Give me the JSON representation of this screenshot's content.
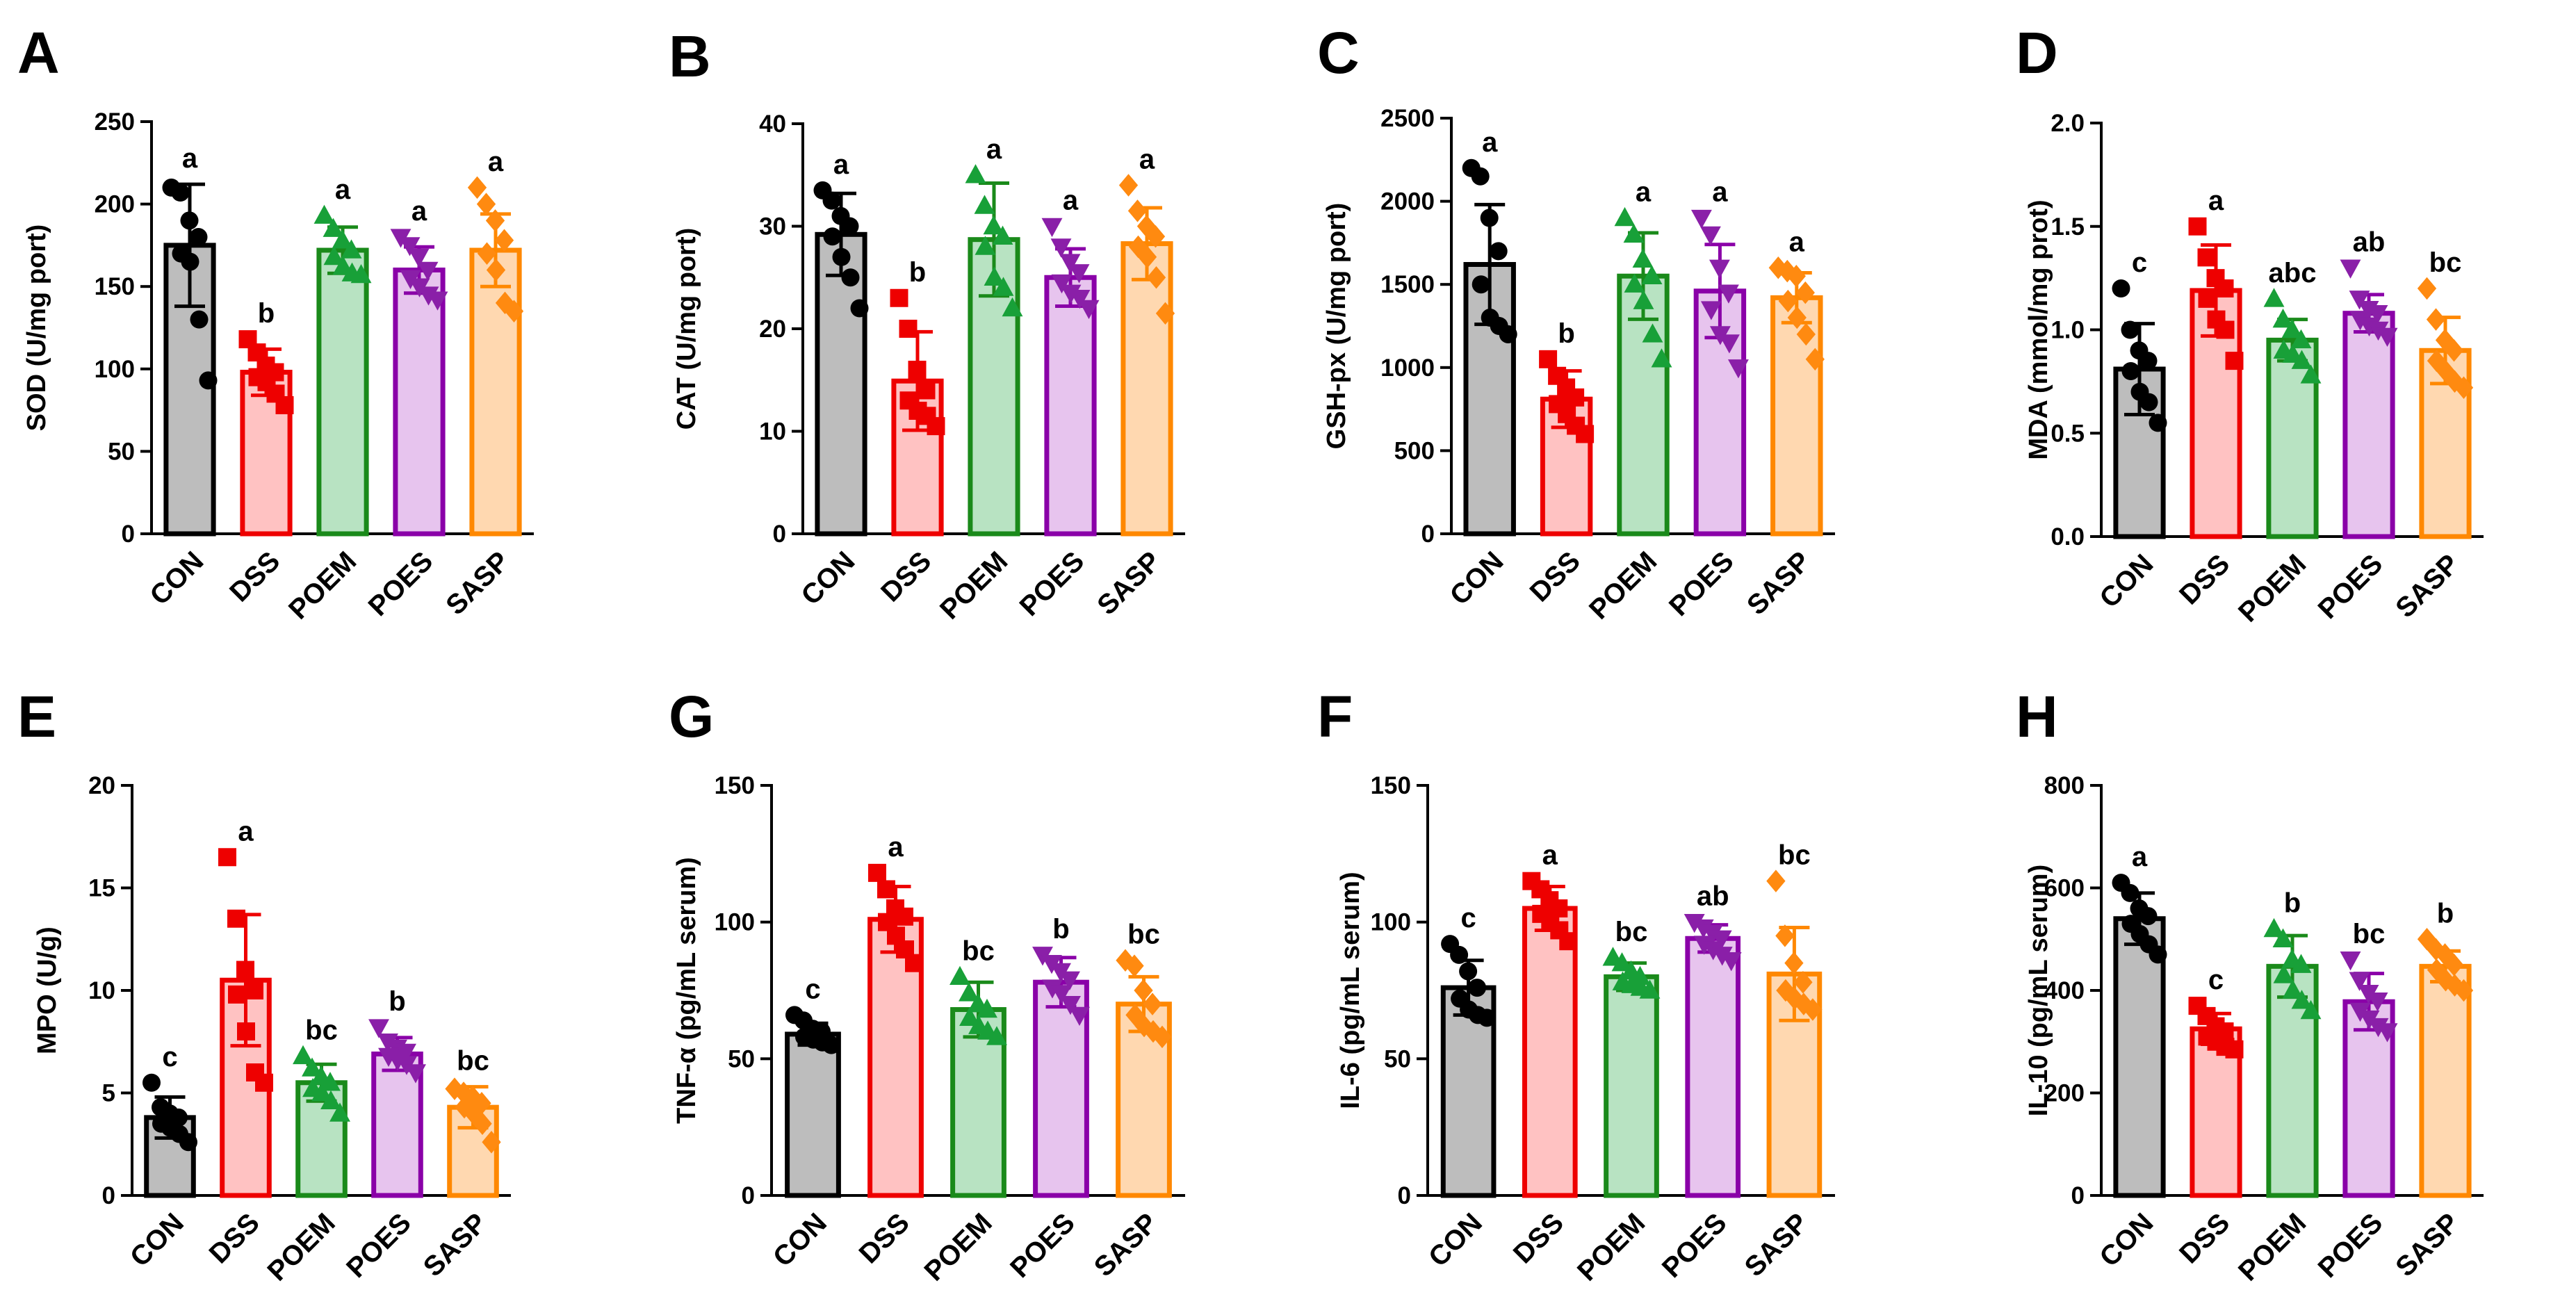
{
  "figure": {
    "groups": [
      "CON",
      "DSS",
      "POEM",
      "POES",
      "SASP"
    ],
    "group_colors": {
      "stroke": [
        "#000000",
        "#ee0000",
        "#1a8a1a",
        "#8a00a8",
        "#ff8800"
      ],
      "fill": [
        "#bdbdbd",
        "#ffc2c2",
        "#b8e3c2",
        "#e7c4ee",
        "#ffd8b0"
      ],
      "points": [
        "#000000",
        "#ee0000",
        "#18a038",
        "#8a1fa8",
        "#ff8a10"
      ]
    },
    "marker_shapes": [
      "circle",
      "square",
      "triangle-up",
      "triangle-down",
      "diamond"
    ]
  },
  "chart_data": [
    {
      "type": "bar",
      "panel": "A",
      "ylabel": "SOD (U/mg port)",
      "categories": [
        "CON",
        "DSS",
        "POEM",
        "POES",
        "SASP"
      ],
      "ylim": [
        0,
        250
      ],
      "yticks": [
        0,
        50,
        100,
        150,
        200,
        250
      ],
      "yticklabels": [
        "0",
        "50",
        "100",
        "150",
        "200",
        "250"
      ],
      "means": [
        175,
        98,
        172,
        160,
        172
      ],
      "sd": [
        37,
        14,
        14,
        14,
        22
      ],
      "significance": [
        "a",
        "b",
        "a",
        "a",
        "a"
      ],
      "points": [
        [
          210,
          207,
          190,
          180,
          170,
          165,
          130,
          93
        ],
        [
          118,
          110,
          102,
          98,
          95,
          92,
          85,
          78
        ],
        [
          193,
          185,
          178,
          172,
          168,
          162,
          158,
          157
        ],
        [
          180,
          175,
          168,
          160,
          155,
          150,
          145,
          142
        ],
        [
          210,
          200,
          190,
          178,
          170,
          160,
          140,
          135
        ]
      ]
    },
    {
      "type": "bar",
      "panel": "B",
      "ylabel": "CAT (U/mg port)",
      "categories": [
        "CON",
        "DSS",
        "POEM",
        "POES",
        "SASP"
      ],
      "ylim": [
        0,
        40
      ],
      "yticks": [
        0,
        10,
        20,
        30,
        40
      ],
      "yticklabels": [
        "0",
        "10",
        "20",
        "30",
        "40"
      ],
      "means": [
        29.2,
        14.9,
        28.7,
        25,
        28.3
      ],
      "sd": [
        4,
        4.8,
        5.5,
        2.8,
        3.5
      ],
      "significance": [
        "a",
        "b",
        "a",
        "a",
        "a"
      ],
      "points": [
        [
          33.5,
          32.5,
          31,
          30,
          29,
          27,
          25,
          22
        ],
        [
          23,
          20,
          16,
          14,
          13,
          12,
          11.5,
          10.5
        ],
        [
          35,
          32,
          30,
          29,
          28,
          25,
          24,
          22
        ],
        [
          30,
          28,
          26.5,
          25.5,
          24.5,
          23.5,
          23,
          22
        ],
        [
          34,
          31.5,
          30,
          29,
          28,
          27,
          25,
          21.5
        ]
      ]
    },
    {
      "type": "bar",
      "panel": "C",
      "ylabel": "GSH-px (U/mg port)",
      "categories": [
        "CON",
        "DSS",
        "POEM",
        "POES",
        "SASP"
      ],
      "ylim": [
        0,
        2500
      ],
      "yticks": [
        0,
        500,
        1000,
        1500,
        2000,
        2500
      ],
      "yticklabels": [
        "0",
        "500",
        "1000",
        "1500",
        "2000",
        "2500"
      ],
      "means": [
        1620,
        810,
        1550,
        1460,
        1420
      ],
      "sd": [
        360,
        170,
        260,
        280,
        150
      ],
      "significance": [
        "a",
        "b",
        "a",
        "a",
        "a"
      ],
      "points": [
        [
          2200,
          2150,
          1900,
          1700,
          1500,
          1300,
          1250,
          1200
        ],
        [
          1050,
          950,
          880,
          820,
          780,
          720,
          650,
          600
        ],
        [
          1900,
          1800,
          1650,
          1550,
          1500,
          1400,
          1200,
          1050
        ],
        [
          1900,
          1800,
          1600,
          1450,
          1350,
          1200,
          1150,
          1000
        ],
        [
          1600,
          1580,
          1550,
          1450,
          1400,
          1300,
          1200,
          1050
        ]
      ]
    },
    {
      "type": "bar",
      "panel": "D",
      "ylabel": "MDA (mmol/mg prot)",
      "categories": [
        "CON",
        "DSS",
        "POEM",
        "POES",
        "SASP"
      ],
      "ylim": [
        0,
        2.0
      ],
      "yticks": [
        0,
        0.5,
        1.0,
        1.5,
        2.0
      ],
      "yticklabels": [
        "0.0",
        "0.5",
        "1.0",
        "1.5",
        "2.0"
      ],
      "means": [
        0.81,
        1.19,
        0.95,
        1.08,
        0.9
      ],
      "sd": [
        0.22,
        0.22,
        0.1,
        0.09,
        0.16
      ],
      "significance": [
        "c",
        "a",
        "abc",
        "ab",
        "bc"
      ],
      "points": [
        [
          1.2,
          1.0,
          0.9,
          0.85,
          0.8,
          0.7,
          0.65,
          0.55
        ],
        [
          1.5,
          1.35,
          1.25,
          1.2,
          1.15,
          1.05,
          1.0,
          0.85
        ],
        [
          1.15,
          1.05,
          1.0,
          0.95,
          0.9,
          0.88,
          0.85,
          0.78
        ],
        [
          1.3,
          1.15,
          1.1,
          1.08,
          1.05,
          1.02,
          1.0,
          0.97
        ],
        [
          1.2,
          1.05,
          0.95,
          0.9,
          0.85,
          0.8,
          0.75,
          0.72
        ]
      ]
    },
    {
      "type": "bar",
      "panel": "E",
      "ylabel": "MPO (U/g)",
      "categories": [
        "CON",
        "DSS",
        "POEM",
        "POES",
        "SASP"
      ],
      "ylim": [
        0,
        20
      ],
      "yticks": [
        0,
        5,
        10,
        15,
        20
      ],
      "yticklabels": [
        "0",
        "5",
        "10",
        "15",
        "20"
      ],
      "means": [
        3.8,
        10.5,
        5.5,
        6.9,
        4.3
      ],
      "sd": [
        1,
        3.2,
        0.9,
        0.8,
        1
      ],
      "significance": [
        "c",
        "a",
        "bc",
        "b",
        "bc"
      ],
      "points": [
        [
          5.5,
          4.3,
          4,
          3.8,
          3.5,
          3.3,
          3.0,
          2.6
        ],
        [
          16.5,
          13.5,
          11,
          10,
          9.8,
          8,
          6,
          5.5
        ],
        [
          6.8,
          6.2,
          5.8,
          5.5,
          5.2,
          5,
          4.6,
          4.0
        ],
        [
          8.2,
          7.5,
          7.2,
          7,
          6.8,
          6.6,
          6.4,
          6.0
        ],
        [
          5.2,
          5.0,
          4.8,
          4.5,
          4.3,
          4.0,
          3.5,
          2.6
        ]
      ]
    },
    {
      "type": "bar",
      "panel": "G",
      "ylabel": "TNF-α (pg/mL serum)",
      "categories": [
        "CON",
        "DSS",
        "POEM",
        "POES",
        "SASP"
      ],
      "ylim": [
        0,
        150
      ],
      "yticks": [
        0,
        50,
        100,
        150
      ],
      "yticklabels": [
        "0",
        "50",
        "100",
        "150"
      ],
      "means": [
        59,
        101,
        68,
        78,
        70
      ],
      "sd": [
        4,
        12,
        10,
        9,
        10
      ],
      "significance": [
        "c",
        "a",
        "bc",
        "b",
        "bc"
      ],
      "points": [
        [
          66,
          64,
          61,
          60,
          58,
          57,
          56,
          55
        ],
        [
          118,
          112,
          105,
          102,
          100,
          95,
          90,
          85
        ],
        [
          80,
          74,
          70,
          68,
          65,
          62,
          60,
          58
        ],
        [
          88,
          85,
          82,
          79,
          76,
          74,
          70,
          66
        ],
        [
          86,
          84,
          75,
          70,
          66,
          62,
          60,
          58
        ]
      ]
    },
    {
      "type": "bar",
      "panel": "F",
      "ylabel": "IL-6 (pg/mL serum)",
      "categories": [
        "CON",
        "DSS",
        "POEM",
        "POES",
        "SASP"
      ],
      "ylim": [
        0,
        150
      ],
      "yticks": [
        0,
        50,
        100,
        150
      ],
      "yticklabels": [
        "0",
        "50",
        "100",
        "150"
      ],
      "means": [
        76,
        105,
        80,
        94,
        81
      ],
      "sd": [
        10,
        8,
        5,
        5,
        17
      ],
      "significance": [
        "c",
        "a",
        "bc",
        "ab",
        "bc"
      ],
      "points": [
        [
          92,
          88,
          82,
          76,
          72,
          68,
          66,
          65
        ],
        [
          115,
          112,
          108,
          105,
          103,
          100,
          97,
          93
        ],
        [
          87,
          85,
          82,
          80,
          78,
          77,
          76,
          75
        ],
        [
          100,
          98,
          96,
          94,
          92,
          90,
          88,
          86
        ],
        [
          115,
          95,
          85,
          78,
          75,
          72,
          70,
          68
        ]
      ]
    },
    {
      "type": "bar",
      "panel": "H",
      "ylabel": "IL-10 (pg/mL serum)",
      "categories": [
        "CON",
        "DSS",
        "POEM",
        "POES",
        "SASP"
      ],
      "ylim": [
        0,
        800
      ],
      "yticks": [
        0,
        200,
        400,
        600,
        800
      ],
      "yticklabels": [
        "0",
        "200",
        "400",
        "600",
        "800"
      ],
      "means": [
        540,
        325,
        447,
        378,
        447
      ],
      "sd": [
        50,
        30,
        60,
        55,
        30
      ],
      "significance": [
        "a",
        "c",
        "b",
        "bc",
        "b"
      ],
      "points": [
        [
          610,
          590,
          560,
          545,
          530,
          510,
          490,
          470
        ],
        [
          370,
          350,
          330,
          320,
          310,
          300,
          290,
          285
        ],
        [
          520,
          500,
          460,
          450,
          430,
          400,
          380,
          360
        ],
        [
          460,
          420,
          395,
          380,
          360,
          345,
          330,
          320
        ],
        [
          500,
          480,
          470,
          450,
          440,
          420,
          410,
          400
        ]
      ]
    }
  ]
}
